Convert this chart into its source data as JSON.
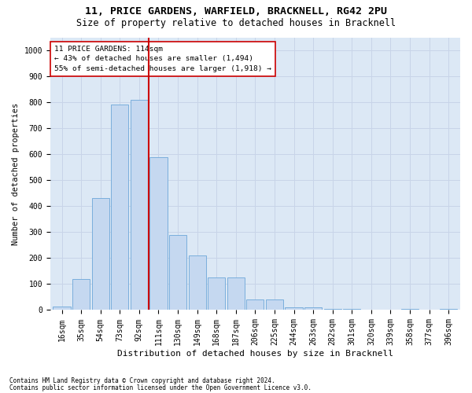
{
  "title1": "11, PRICE GARDENS, WARFIELD, BRACKNELL, RG42 2PU",
  "title2": "Size of property relative to detached houses in Bracknell",
  "xlabel": "Distribution of detached houses by size in Bracknell",
  "ylabel": "Number of detached properties",
  "categories": [
    "16sqm",
    "35sqm",
    "54sqm",
    "73sqm",
    "92sqm",
    "111sqm",
    "130sqm",
    "149sqm",
    "168sqm",
    "187sqm",
    "206sqm",
    "225sqm",
    "244sqm",
    "263sqm",
    "282sqm",
    "301sqm",
    "320sqm",
    "339sqm",
    "358sqm",
    "377sqm",
    "396sqm"
  ],
  "values": [
    15,
    120,
    430,
    790,
    810,
    590,
    290,
    210,
    125,
    125,
    40,
    40,
    10,
    10,
    5,
    5,
    0,
    0,
    5,
    0,
    5
  ],
  "bar_color": "#c5d8f0",
  "bar_edge_color": "#7aaedc",
  "vline_color": "#cc0000",
  "annotation_text": "11 PRICE GARDENS: 114sqm\n← 43% of detached houses are smaller (1,494)\n55% of semi-detached houses are larger (1,918) →",
  "annotation_box_color": "white",
  "annotation_box_edge": "#cc0000",
  "ylim": [
    0,
    1050
  ],
  "yticks": [
    0,
    100,
    200,
    300,
    400,
    500,
    600,
    700,
    800,
    900,
    1000
  ],
  "grid_color": "#c8d4e8",
  "bg_color": "#dce8f5",
  "footnote1": "Contains HM Land Registry data © Crown copyright and database right 2024.",
  "footnote2": "Contains public sector information licensed under the Open Government Licence v3.0.",
  "title1_fontsize": 9.5,
  "title2_fontsize": 8.5,
  "xlabel_fontsize": 8,
  "ylabel_fontsize": 7.5,
  "tick_fontsize": 7,
  "footnote_fontsize": 5.5
}
